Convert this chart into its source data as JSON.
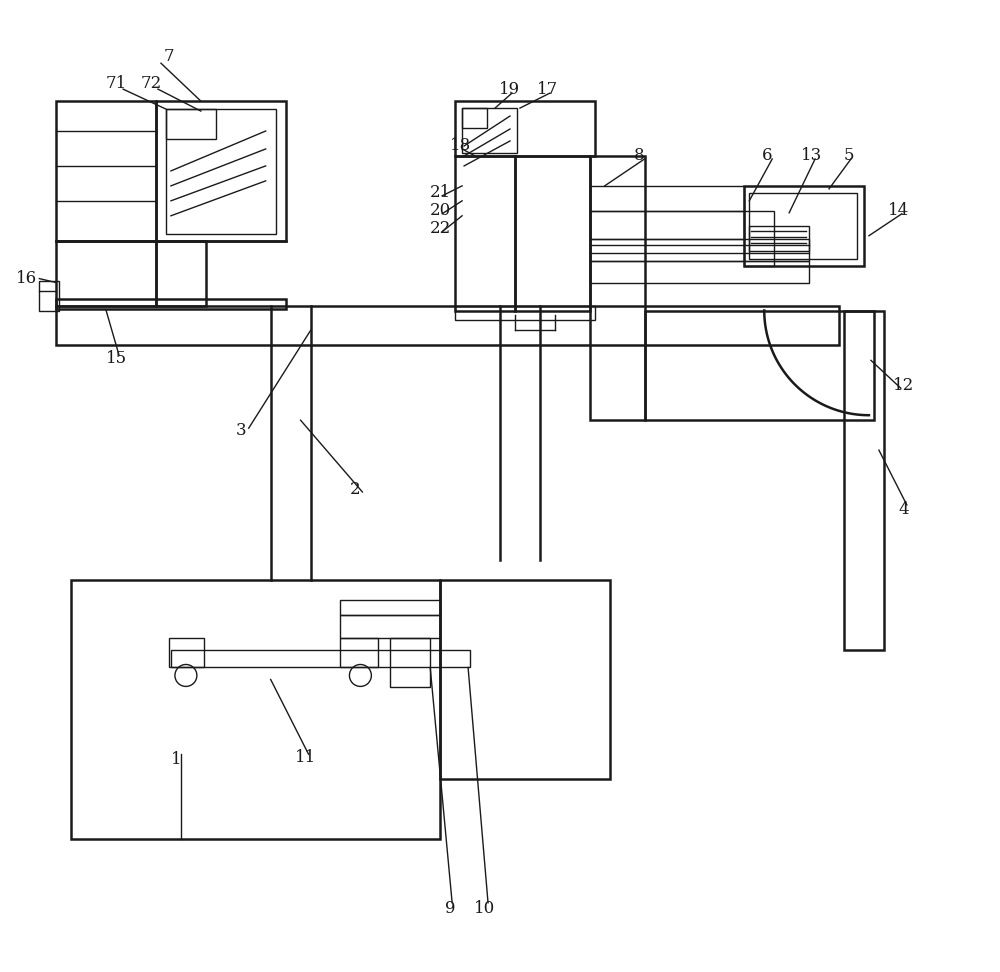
{
  "bg_color": "#ffffff",
  "line_color": "#1a1a1a",
  "lw": 1.8,
  "lw_thin": 1.0,
  "fig_width": 10.0,
  "fig_height": 9.72
}
